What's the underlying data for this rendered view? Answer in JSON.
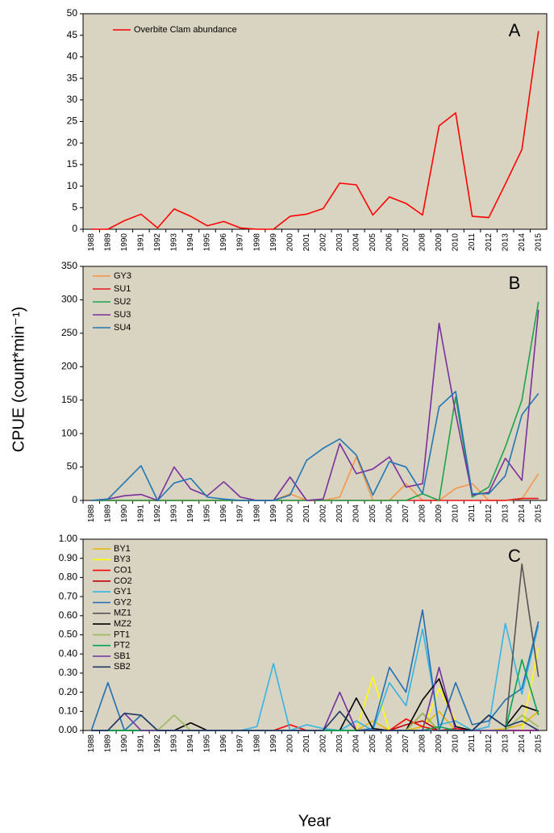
{
  "y_label": "CPUE (count*min⁻¹)",
  "x_label": "Year",
  "chart_data": [
    {
      "type": "line",
      "panel_label": "A",
      "legend": "upper left",
      "grid": false,
      "categories": [
        "1988",
        "1989",
        "1990",
        "1991",
        "1992",
        "1993",
        "1994",
        "1995",
        "1996",
        "1997",
        "1998",
        "1999",
        "2000",
        "2001",
        "2002",
        "2003",
        "2004",
        "2005",
        "2006",
        "2007",
        "2008",
        "2009",
        "2010",
        "2011",
        "2012",
        "2013",
        "2014",
        "2015"
      ],
      "ylim": [
        0,
        50
      ],
      "yticks": [
        0,
        5,
        10,
        15,
        20,
        25,
        30,
        35,
        40,
        45,
        50
      ],
      "series": [
        {
          "name": "Overbite Clam abundance",
          "color": "#ff0000",
          "values": [
            0,
            0,
            2,
            3.5,
            0.3,
            4.7,
            3,
            0.8,
            1.8,
            0.3,
            0,
            0,
            3,
            3.5,
            4.8,
            10.7,
            10.3,
            3.3,
            7.5,
            6,
            3.3,
            24,
            27,
            3,
            2.7,
            10.5,
            18.5,
            46
          ]
        }
      ]
    },
    {
      "type": "line",
      "panel_label": "B",
      "legend": "upper left",
      "grid": false,
      "categories": [
        "1988",
        "1989",
        "1990",
        "1991",
        "1992",
        "1993",
        "1994",
        "1995",
        "1996",
        "1997",
        "1998",
        "1999",
        "2000",
        "2001",
        "2002",
        "2003",
        "2004",
        "2005",
        "2006",
        "2007",
        "2008",
        "2009",
        "2010",
        "2011",
        "2012",
        "2013",
        "2014",
        "2015"
      ],
      "ylim": [
        0,
        350
      ],
      "yticks": [
        0,
        50,
        100,
        150,
        200,
        250,
        300,
        350
      ],
      "series": [
        {
          "name": "GY3",
          "color": "#f79646",
          "values": [
            0,
            0,
            0,
            0,
            0,
            0,
            0,
            0,
            0,
            0,
            0,
            0,
            10,
            0,
            0,
            5,
            65,
            0,
            0,
            25,
            0,
            0,
            18,
            25,
            0,
            0,
            2,
            40
          ]
        },
        {
          "name": "SU1",
          "color": "#e8141b",
          "values": [
            0,
            0,
            0,
            0,
            0,
            0,
            0,
            0,
            0,
            0,
            0,
            0,
            0,
            0,
            0,
            0,
            0,
            0,
            0,
            0,
            0,
            0,
            0,
            0,
            0,
            0,
            3,
            3
          ]
        },
        {
          "name": "SU2",
          "color": "#1aa64a",
          "values": [
            0,
            0,
            0,
            0,
            0,
            0,
            0,
            0,
            0,
            0,
            0,
            0,
            0,
            0,
            0,
            0,
            0,
            0,
            0,
            0,
            10,
            0,
            155,
            5,
            20,
            80,
            150,
            297
          ]
        },
        {
          "name": "SU3",
          "color": "#7b2f9e",
          "values": [
            0,
            2,
            7,
            9,
            0,
            50,
            17,
            7,
            28,
            5,
            0,
            0,
            35,
            0,
            2,
            85,
            40,
            47,
            65,
            20,
            25,
            265,
            130,
            8,
            12,
            63,
            30,
            285
          ]
        },
        {
          "name": "SU4",
          "color": "#1f77b4",
          "values": [
            0,
            2,
            27,
            52,
            0,
            26,
            33,
            5,
            2,
            0,
            0,
            0,
            8,
            60,
            78,
            92,
            68,
            8,
            58,
            50,
            10,
            140,
            163,
            10,
            10,
            37,
            128,
            160
          ]
        }
      ]
    },
    {
      "type": "line",
      "panel_label": "C",
      "legend": "upper left",
      "grid": false,
      "categories": [
        "1988",
        "1989",
        "1990",
        "1991",
        "1992",
        "1993",
        "1994",
        "1995",
        "1996",
        "1997",
        "1998",
        "1999",
        "2000",
        "2001",
        "2002",
        "2003",
        "2004",
        "2005",
        "2006",
        "2007",
        "2008",
        "2009",
        "2010",
        "2011",
        "2012",
        "2013",
        "2014",
        "2015"
      ],
      "ylim": [
        0,
        1
      ],
      "yticks": [
        {
          "value": 0,
          "label": "0.00"
        },
        {
          "value": 0.1,
          "label": "0.10"
        },
        {
          "value": 0.2,
          "label": "0.20"
        },
        {
          "value": 0.3,
          "label": "0.30"
        },
        {
          "value": 0.4,
          "label": "0.40"
        },
        {
          "value": 0.5,
          "label": "0.50"
        },
        {
          "value": 0.6,
          "label": "0.60"
        },
        {
          "value": 0.7,
          "label": "0.70"
        },
        {
          "value": 0.8,
          "label": "0.80"
        },
        {
          "value": 0.9,
          "label": "0.90"
        },
        {
          "value": 1,
          "label": "1.00"
        }
      ],
      "series": [
        {
          "name": "BY1",
          "color": "#e6b800",
          "values": [
            0,
            0,
            0,
            0,
            0,
            0,
            0,
            0,
            0,
            0,
            0,
            0,
            0,
            0,
            0,
            0,
            0,
            0.05,
            0,
            0,
            0.02,
            0.1,
            0,
            0,
            0,
            0.01,
            0.03,
            0.1
          ]
        },
        {
          "name": "BY3",
          "color": "#ffff00",
          "values": [
            0,
            0,
            0,
            0,
            0,
            0,
            0,
            0,
            0,
            0,
            0,
            0,
            0,
            0,
            0,
            0,
            0,
            0.28,
            0,
            0,
            0,
            0.22,
            0.05,
            0,
            0,
            0,
            0,
            0.43
          ]
        },
        {
          "name": "CO1",
          "color": "#ff0000",
          "values": [
            0,
            0,
            0,
            0,
            0,
            0,
            0,
            0,
            0,
            0,
            0,
            0,
            0.03,
            0,
            0,
            0,
            0,
            0,
            0,
            0.06,
            0.02,
            0,
            0.01,
            0,
            0,
            0,
            0,
            0
          ]
        },
        {
          "name": "CO2",
          "color": "#c00000",
          "values": [
            0,
            0,
            0,
            0,
            0,
            0,
            0,
            0,
            0,
            0,
            0,
            0,
            0,
            0,
            0,
            0,
            0,
            0,
            0,
            0.03,
            0.05,
            0,
            0,
            0,
            0,
            0,
            0,
            0
          ]
        },
        {
          "name": "GY1",
          "color": "#33b5e5",
          "values": [
            0,
            0,
            0,
            0,
            0,
            0,
            0,
            0,
            0,
            0,
            0.02,
            0.35,
            0,
            0.03,
            0.01,
            0,
            0.05,
            0,
            0.25,
            0.13,
            0.53,
            0.03,
            0.05,
            0,
            0.02,
            0.56,
            0.19,
            0.55
          ]
        },
        {
          "name": "GY2",
          "color": "#1f6fb4",
          "values": [
            0,
            0.25,
            0,
            0.08,
            0,
            0,
            0,
            0,
            0,
            0,
            0,
            0,
            0,
            0,
            0,
            0,
            0,
            0.01,
            0.33,
            0.2,
            0.63,
            0,
            0.25,
            0.03,
            0.05,
            0.16,
            0.22,
            0.57
          ]
        },
        {
          "name": "MZ1",
          "color": "#555555",
          "values": [
            0,
            0,
            0,
            0,
            0,
            0,
            0,
            0,
            0,
            0,
            0,
            0,
            0,
            0,
            0,
            0,
            0,
            0,
            0,
            0,
            0.09,
            0,
            0,
            0,
            0,
            0,
            0.87,
            0.28
          ]
        },
        {
          "name": "MZ2",
          "color": "#000000",
          "values": [
            0,
            0,
            0,
            0,
            0,
            0,
            0.04,
            0,
            0,
            0,
            0,
            0,
            0,
            0,
            0,
            0,
            0.17,
            0.01,
            0,
            0,
            0.16,
            0.27,
            0.02,
            0,
            0.08,
            0.02,
            0.13,
            0.1
          ]
        },
        {
          "name": "PT1",
          "color": "#9bbb59",
          "values": [
            0,
            0,
            0,
            0,
            0,
            0.08,
            0,
            0,
            0,
            0,
            0,
            0,
            0,
            0,
            0,
            0,
            0,
            0,
            0,
            0,
            0.09,
            0,
            0,
            0,
            0,
            0,
            0.08,
            0.02
          ]
        },
        {
          "name": "PT2",
          "color": "#00a651",
          "values": [
            0,
            0,
            0,
            0,
            0,
            0,
            0,
            0,
            0,
            0,
            0,
            0,
            0,
            0,
            0,
            0,
            0,
            0,
            0,
            0,
            0,
            0.02,
            0,
            0,
            0,
            0,
            0.37,
            0.08
          ]
        },
        {
          "name": "SB1",
          "color": "#7030a0",
          "values": [
            0,
            0,
            0.09,
            0,
            0,
            0,
            0,
            0,
            0,
            0,
            0,
            0,
            0,
            0,
            0,
            0.2,
            0,
            0,
            0,
            0,
            0,
            0.33,
            0,
            0,
            0,
            0,
            0,
            0
          ]
        },
        {
          "name": "SB2",
          "color": "#1f3864",
          "values": [
            0,
            0,
            0.09,
            0.08,
            0,
            0,
            0,
            0,
            0,
            0,
            0,
            0,
            0,
            0,
            0,
            0.1,
            0,
            0,
            0,
            0,
            0,
            0,
            0,
            0,
            0.08,
            0.02,
            0.05,
            0
          ]
        }
      ]
    }
  ]
}
